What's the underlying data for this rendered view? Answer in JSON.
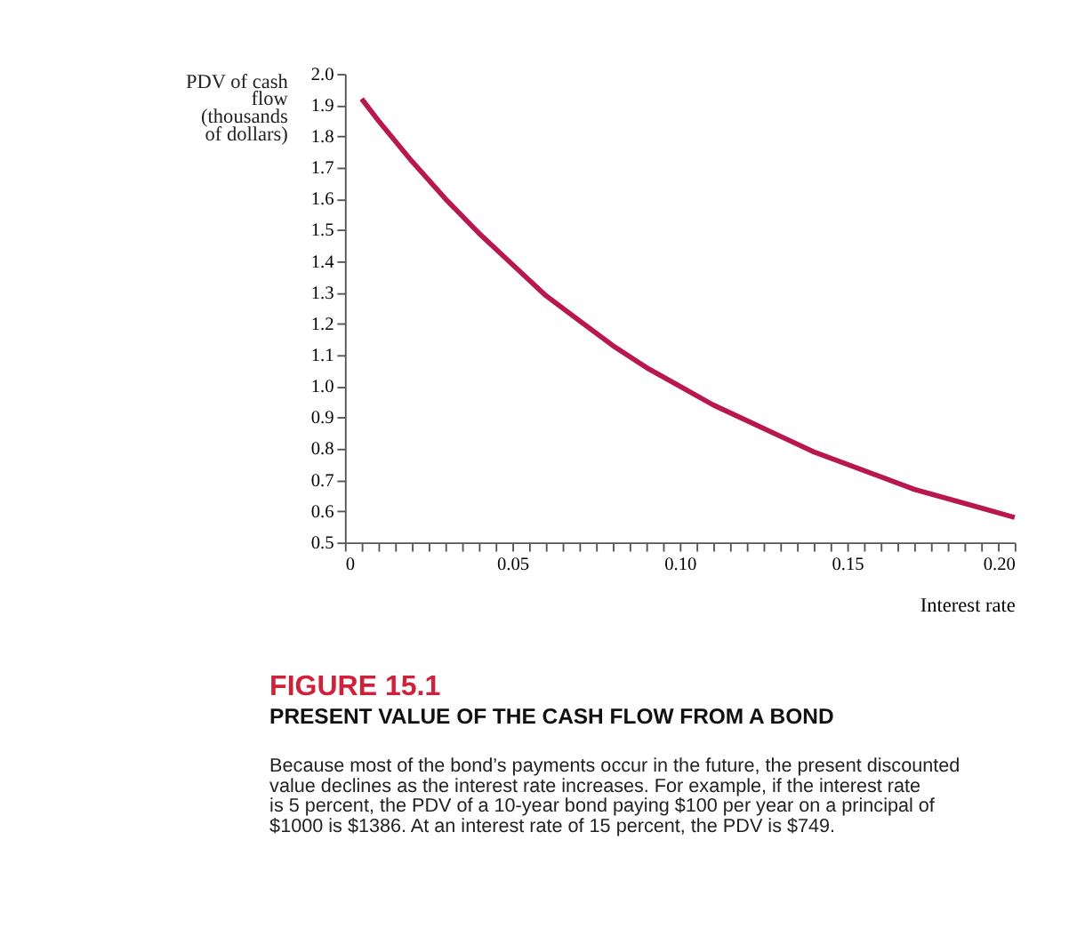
{
  "chart_data": {
    "type": "line",
    "title": "FIGURE 15.1",
    "subtitle": "PRESENT VALUE OF THE CASH FLOW FROM A BOND",
    "xlabel": "Interest rate",
    "ylabel": "PDV of cash flow (thousands of dollars)",
    "annotations": [
      "Because most of the bond’s payments occur in the future, the present discounted value declines as the interest rate increases. For example, if the interest rate is 5 percent, the PDV of a 10-year bond paying $100 per year on a principal of $1000 is $1386. At an interest rate of 15 percent, the PDV is $749."
    ],
    "x": [
      0.005,
      0.01,
      0.02,
      0.03,
      0.04,
      0.05,
      0.06,
      0.07,
      0.08,
      0.09,
      0.1,
      0.11,
      0.12,
      0.13,
      0.14,
      0.15,
      0.16,
      0.17,
      0.18,
      0.19,
      0.2
    ],
    "series": [
      {
        "color": "#b8174f",
        "values": [
          1.92,
          1.85,
          1.72,
          1.6,
          1.49,
          1.39,
          1.29,
          1.21,
          1.13,
          1.06,
          1.0,
          0.94,
          0.89,
          0.84,
          0.79,
          0.75,
          0.71,
          0.67,
          0.64,
          0.61,
          0.58
        ]
      }
    ],
    "xlim": [
      0,
      0.2
    ],
    "ylim": [
      0.5,
      2.0
    ],
    "xticks": [
      0,
      {
        "value": 0.005,
        "label": null
      },
      {
        "value": 0.01,
        "label": null
      },
      {
        "value": 0.015,
        "label": null
      },
      {
        "value": 0.02,
        "label": null
      },
      {
        "value": 0.025,
        "label": null
      },
      {
        "value": 0.03,
        "label": null
      },
      {
        "value": 0.035,
        "label": null
      },
      {
        "value": 0.04,
        "label": null
      },
      {
        "value": 0.045,
        "label": null
      },
      0.05,
      {
        "value": 0.055,
        "label": null
      },
      {
        "value": 0.06,
        "label": null
      },
      {
        "value": 0.065,
        "label": null
      },
      {
        "value": 0.07,
        "label": null
      },
      {
        "value": 0.075,
        "label": null
      },
      {
        "value": 0.08,
        "label": null
      },
      {
        "value": 0.085,
        "label": null
      },
      {
        "value": 0.09,
        "label": null
      },
      {
        "value": 0.095,
        "label": null
      },
      {
        "value": 0.1,
        "label": "0.10"
      },
      {
        "value": 0.105,
        "label": null
      },
      {
        "value": 0.11,
        "label": null
      },
      {
        "value": 0.115,
        "label": null
      },
      {
        "value": 0.12,
        "label": null
      },
      {
        "value": 0.125,
        "label": null
      },
      {
        "value": 0.13,
        "label": null
      },
      {
        "value": 0.135,
        "label": null
      },
      {
        "value": 0.14,
        "label": null
      },
      {
        "value": 0.145,
        "label": null
      },
      0.15,
      {
        "value": 0.155,
        "label": null
      },
      {
        "value": 0.16,
        "label": null
      },
      {
        "value": 0.165,
        "label": null
      },
      {
        "value": 0.17,
        "label": null
      },
      {
        "value": 0.175,
        "label": null
      },
      {
        "value": 0.18,
        "label": null
      },
      {
        "value": 0.185,
        "label": null
      },
      {
        "value": 0.19,
        "label": null
      },
      {
        "value": 0.195,
        "label": null
      },
      {
        "value": 0.2,
        "label": "0.20"
      }
    ],
    "yticks": [
      0.5,
      0.6,
      0.7,
      0.8,
      0.9,
      {
        "value": 1.0,
        "label": "1.0"
      },
      1.1,
      1.2,
      1.3,
      1.4,
      1.5,
      1.6,
      1.7,
      1.8,
      1.9,
      {
        "value": 2.0,
        "label": "2.0"
      }
    ],
    "grid": false,
    "marker": "none",
    "line_style": "solid"
  }
}
